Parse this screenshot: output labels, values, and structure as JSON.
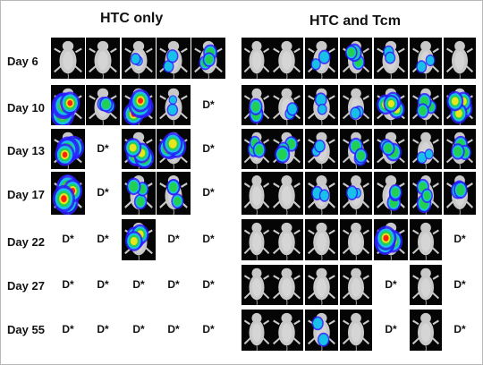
{
  "groups": {
    "htc_only": "HTC only",
    "htc_tcm": "HTC and Tcm"
  },
  "days": [
    "Day 6",
    "Day 10",
    "Day 13",
    "Day 17",
    "Day 22",
    "Day 27",
    "Day 55"
  ],
  "deceased_marker": "D*",
  "colors": {
    "background": "#ffffff",
    "panel_background": "#050505",
    "mouse_fur": "#c9c9c9",
    "signal_low": "#2a1cff",
    "signal_mid": "#16c8e8",
    "signal_high_green": "#22d04a",
    "signal_high_yellow": "#f5e51b",
    "signal_max": "#ff1a0a"
  },
  "htc_only": [
    [
      "mouse",
      "mouse",
      "mouse",
      "mouse",
      "mouse"
    ],
    [
      "mouse",
      "mouse",
      "mouse",
      "mouse",
      "D*"
    ],
    [
      "mouse",
      "D*",
      "mouse",
      "mouse",
      "D*"
    ],
    [
      "mouse",
      "D*",
      "mouse",
      "mouse",
      "D*"
    ],
    [
      "D*",
      "D*",
      "mouse",
      "D*",
      "D*"
    ],
    [
      "D*",
      "D*",
      "D*",
      "D*",
      "D*"
    ],
    [
      "D*",
      "D*",
      "D*",
      "D*",
      "D*"
    ]
  ],
  "htc_tcm": [
    [
      "mouse",
      "mouse",
      "mouse",
      "mouse",
      "mouse",
      "mouse",
      "mouse"
    ],
    [
      "mouse",
      "mouse",
      "mouse",
      "mouse",
      "mouse",
      "mouse",
      "mouse"
    ],
    [
      "mouse",
      "mouse",
      "mouse",
      "mouse",
      "mouse",
      "mouse",
      "mouse"
    ],
    [
      "mouse",
      "mouse",
      "mouse",
      "mouse",
      "mouse",
      "mouse",
      "mouse"
    ],
    [
      "mouse",
      "mouse",
      "mouse",
      "mouse",
      "mouse",
      "mouse",
      "D*"
    ],
    [
      "mouse",
      "mouse",
      "mouse",
      "mouse",
      "D*",
      "mouse",
      "D*"
    ],
    [
      "mouse",
      "mouse",
      "mouse",
      "mouse",
      "D*",
      "mouse",
      "D*"
    ]
  ]
}
